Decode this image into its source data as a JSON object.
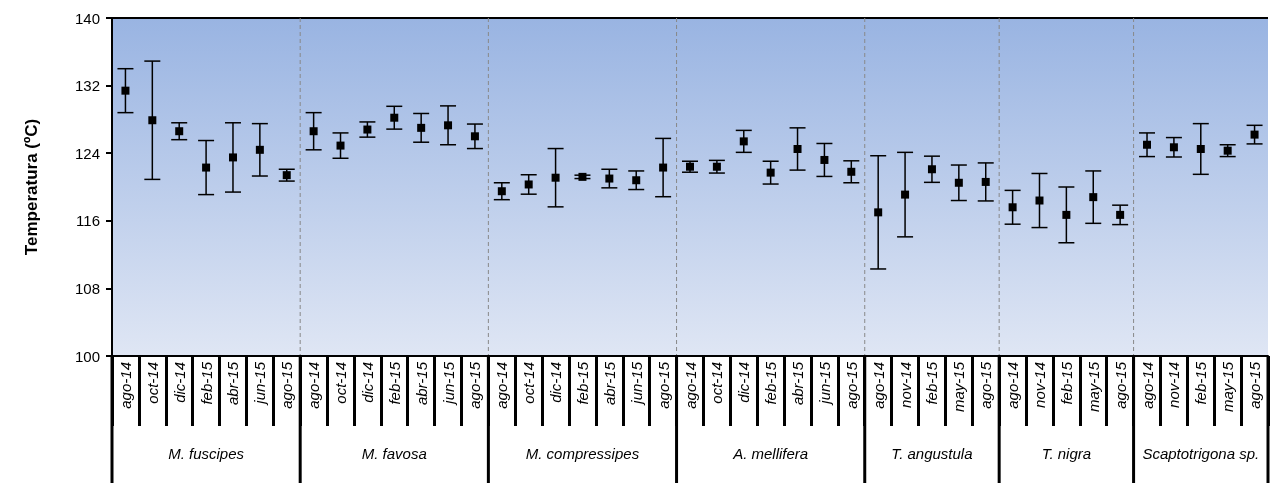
{
  "chart_data": {
    "type": "scatter",
    "ylabel": "Temperatura (ºC)",
    "categories": [
      "ago-14",
      "oct-14",
      "dic-14",
      "feb-15",
      "abr-15",
      "jun-15",
      "ago-15",
      "ago-14",
      "oct-14",
      "dic-14",
      "feb-15",
      "abr-15",
      "jun-15",
      "ago-15",
      "ago-14",
      "oct-14",
      "dic-14",
      "feb-15",
      "abr-15",
      "jun-15",
      "ago-15",
      "ago-14",
      "oct-14",
      "dic-14",
      "feb-15",
      "abr-15",
      "jun-15",
      "ago-15",
      "ago-14",
      "nov-14",
      "feb-15",
      "may-15",
      "ago-15",
      "ago-14",
      "nov-14",
      "feb-15",
      "may-15",
      "ago-15",
      "ago-14",
      "nov-14",
      "feb-15",
      "may-15",
      "ago-15"
    ],
    "series": [
      {
        "color": "#000000",
        "values": [
          131.4,
          127.9,
          126.6,
          122.3,
          123.5,
          124.4,
          121.4,
          null,
          null,
          null,
          null,
          null,
          null,
          null,
          null,
          null,
          null,
          null,
          null,
          null,
          null,
          null,
          null,
          null,
          null,
          null,
          null,
          null,
          null,
          null,
          null,
          null,
          null,
          null,
          null,
          null,
          null,
          null,
          null,
          null,
          null,
          null,
          null
        ],
        "errors": [
          2.6,
          7,
          1,
          3.2,
          4.1,
          3.1,
          0.7,
          null,
          null,
          null,
          null,
          null,
          null,
          null,
          null,
          null,
          null,
          null,
          null,
          null,
          null,
          null,
          null,
          null,
          null,
          null,
          null,
          null,
          null,
          null,
          null,
          null,
          null,
          null,
          null,
          null,
          null,
          null,
          null,
          null,
          null,
          null,
          null
        ]
      },
      {
        "color": "#000000",
        "values": [
          null,
          null,
          null,
          null,
          null,
          null,
          null,
          126.6,
          124.9,
          126.8,
          128.2,
          127.0,
          127.3,
          126.0,
          null,
          null,
          null,
          null,
          null,
          null,
          null,
          null,
          null,
          null,
          null,
          null,
          null,
          null,
          null,
          null,
          null,
          null,
          null,
          null,
          null,
          null,
          null,
          null,
          null,
          null,
          null,
          null,
          null
        ],
        "errors": [
          null,
          null,
          null,
          null,
          null,
          null,
          null,
          2.2,
          1.5,
          0.9,
          1.35,
          1.7,
          2.3,
          1.45,
          null,
          null,
          null,
          null,
          null,
          null,
          null,
          null,
          null,
          null,
          null,
          null,
          null,
          null,
          null,
          null,
          null,
          null,
          null,
          null,
          null,
          null,
          null,
          null,
          null,
          null,
          null,
          null,
          null
        ]
      },
      {
        "color": "#000000",
        "values": [
          null,
          null,
          null,
          null,
          null,
          null,
          null,
          null,
          null,
          null,
          null,
          null,
          null,
          null,
          119.5,
          120.3,
          121.1,
          121.2,
          121.0,
          120.8,
          122.3,
          null,
          null,
          null,
          null,
          null,
          null,
          null,
          null,
          null,
          null,
          null,
          null,
          null,
          null,
          null,
          null,
          null,
          null,
          null,
          null,
          null,
          null
        ],
        "errors": [
          null,
          null,
          null,
          null,
          null,
          null,
          null,
          null,
          null,
          null,
          null,
          null,
          null,
          null,
          1,
          1.15,
          3.45,
          0.2,
          1.1,
          1.1,
          3.45,
          null,
          null,
          null,
          null,
          null,
          null,
          null,
          null,
          null,
          null,
          null,
          null,
          null,
          null,
          null,
          null,
          null,
          null,
          null,
          null,
          null,
          null
        ]
      },
      {
        "color": "#000000",
        "values": [
          null,
          null,
          null,
          null,
          null,
          null,
          null,
          null,
          null,
          null,
          null,
          null,
          null,
          null,
          null,
          null,
          null,
          null,
          null,
          null,
          null,
          122.4,
          122.4,
          125.4,
          121.7,
          124.5,
          123.2,
          121.8,
          null,
          null,
          null,
          null,
          null,
          null,
          null,
          null,
          null,
          null,
          null,
          null,
          null,
          null,
          null
        ],
        "errors": [
          null,
          null,
          null,
          null,
          null,
          null,
          null,
          null,
          null,
          null,
          null,
          null,
          null,
          null,
          null,
          null,
          null,
          null,
          null,
          null,
          null,
          0.65,
          0.75,
          1.3,
          1.35,
          2.5,
          1.95,
          1.3,
          null,
          null,
          null,
          null,
          null,
          null,
          null,
          null,
          null,
          null,
          null,
          null,
          null,
          null,
          null
        ]
      },
      {
        "color": "#000000",
        "values": [
          null,
          null,
          null,
          null,
          null,
          null,
          null,
          null,
          null,
          null,
          null,
          null,
          null,
          null,
          null,
          null,
          null,
          null,
          null,
          null,
          null,
          null,
          null,
          null,
          null,
          null,
          null,
          null,
          117.0,
          119.1,
          122.1,
          120.5,
          120.6,
          null,
          null,
          null,
          null,
          null,
          null,
          null,
          null,
          null,
          null
        ],
        "errors": [
          null,
          null,
          null,
          null,
          null,
          null,
          null,
          null,
          null,
          null,
          null,
          null,
          null,
          null,
          null,
          null,
          null,
          null,
          null,
          null,
          null,
          null,
          null,
          null,
          null,
          null,
          null,
          null,
          6.7,
          5,
          1.55,
          2.1,
          2.25,
          null,
          null,
          null,
          null,
          null,
          null,
          null,
          null,
          null,
          null
        ]
      },
      {
        "color": "#000000",
        "values": [
          null,
          null,
          null,
          null,
          null,
          null,
          null,
          null,
          null,
          null,
          null,
          null,
          null,
          null,
          null,
          null,
          null,
          null,
          null,
          null,
          null,
          null,
          null,
          null,
          null,
          null,
          null,
          null,
          null,
          null,
          null,
          null,
          null,
          117.6,
          118.4,
          116.7,
          118.8,
          116.7,
          null,
          null,
          null,
          null,
          null
        ],
        "errors": [
          null,
          null,
          null,
          null,
          null,
          null,
          null,
          null,
          null,
          null,
          null,
          null,
          null,
          null,
          null,
          null,
          null,
          null,
          null,
          null,
          null,
          null,
          null,
          null,
          null,
          null,
          null,
          null,
          null,
          null,
          null,
          null,
          null,
          2,
          3.2,
          3.3,
          3.1,
          1.15,
          null,
          null,
          null,
          null,
          null
        ]
      },
      {
        "color": "#000000",
        "values": [
          null,
          null,
          null,
          null,
          null,
          null,
          null,
          null,
          null,
          null,
          null,
          null,
          null,
          null,
          null,
          null,
          null,
          null,
          null,
          null,
          null,
          null,
          null,
          null,
          null,
          null,
          null,
          null,
          null,
          null,
          null,
          null,
          null,
          null,
          null,
          null,
          null,
          null,
          125.0,
          124.7,
          124.5,
          124.3,
          126.2
        ],
        "errors": [
          null,
          null,
          null,
          null,
          null,
          null,
          null,
          null,
          null,
          null,
          null,
          null,
          null,
          null,
          null,
          null,
          null,
          null,
          null,
          null,
          null,
          null,
          null,
          null,
          null,
          null,
          null,
          null,
          null,
          null,
          null,
          null,
          null,
          null,
          null,
          null,
          null,
          null,
          1.4,
          1.15,
          3,
          0.7,
          1.1
        ]
      }
    ],
    "ylim": [
      100,
      140
    ],
    "yticks": [
      100,
      108,
      116,
      124,
      132,
      140
    ],
    "annotations": [
      "M. fuscipes",
      "M. favosa",
      "M. compressipes",
      "A. mellifera",
      "T. angustula",
      "T. nigra",
      "Scaptotrigona sp."
    ],
    "marker": "square",
    "grid": false
  }
}
